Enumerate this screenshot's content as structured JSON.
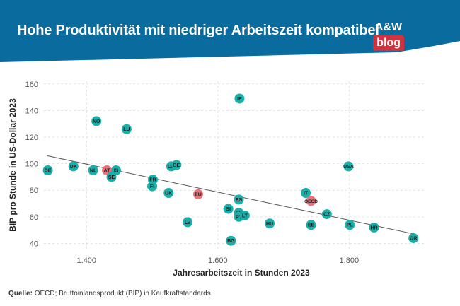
{
  "header": {
    "title": "Hohe Produktivität mit niedriger Arbeitszeit kompatibel",
    "logo_top": "A&W",
    "logo_bottom": "blog",
    "bg_color": "#0a6b9e",
    "logo_accent": "#d0323e"
  },
  "footer": {
    "source_label": "Quelle:",
    "source_text": "OECD; Bruttoinlandsprodukt (BIP) in Kaufkraftstandards"
  },
  "chart_data": {
    "type": "scatter",
    "xlabel": "Jahresarbeitszeit in Stunden 2023",
    "ylabel": "BIP pro Stunde in US-Dollar 2023",
    "xlim": [
      1335,
      1915
    ],
    "ylim": [
      36,
      162
    ],
    "xticks": [
      1400,
      1600,
      1800
    ],
    "xtick_labels": [
      "1.400",
      "1.600",
      "1.800"
    ],
    "yticks": [
      40,
      60,
      80,
      100,
      120,
      140,
      160
    ],
    "grid": true,
    "point_color": "#1aafa8",
    "highlight_color": "#e8737c",
    "trendline": {
      "x": [
        1340,
        1900
      ],
      "y": [
        106,
        47
      ],
      "color": "#555555"
    },
    "points": [
      {
        "label": "DE",
        "x": 1341,
        "y": 95,
        "highlight": false
      },
      {
        "label": "DK",
        "x": 1380,
        "y": 98,
        "highlight": false
      },
      {
        "label": "NL",
        "x": 1410,
        "y": 95,
        "highlight": false
      },
      {
        "label": "AT",
        "x": 1431,
        "y": 95,
        "highlight": true
      },
      {
        "label": "IS",
        "x": 1445,
        "y": 95,
        "highlight": false
      },
      {
        "label": "SE",
        "x": 1438,
        "y": 90,
        "highlight": false
      },
      {
        "label": "NO",
        "x": 1415,
        "y": 132,
        "highlight": false
      },
      {
        "label": "LU",
        "x": 1461,
        "y": 126,
        "highlight": false
      },
      {
        "label": "IE",
        "x": 1633,
        "y": 149,
        "highlight": false
      },
      {
        "label": "FR",
        "x": 1501,
        "y": 88,
        "highlight": false
      },
      {
        "label": "FI",
        "x": 1500,
        "y": 83,
        "highlight": false
      },
      {
        "label": "CH",
        "x": 1529,
        "y": 98,
        "highlight": false
      },
      {
        "label": "BE",
        "x": 1537,
        "y": 99,
        "highlight": false
      },
      {
        "label": "UK",
        "x": 1525,
        "y": 78,
        "highlight": false
      },
      {
        "label": "EU",
        "x": 1570,
        "y": 77,
        "highlight": true
      },
      {
        "label": "LV",
        "x": 1554,
        "y": 56,
        "highlight": false
      },
      {
        "label": "BG",
        "x": 1620,
        "y": 42,
        "highlight": false
      },
      {
        "label": "ES",
        "x": 1632,
        "y": 73,
        "highlight": false
      },
      {
        "label": "SI",
        "x": 1616,
        "y": 66,
        "highlight": false
      },
      {
        "label": "SK",
        "x": 1632,
        "y": 63,
        "highlight": false
      },
      {
        "label": "PT",
        "x": 1632,
        "y": 60,
        "highlight": false
      },
      {
        "label": "LT",
        "x": 1641,
        "y": 61,
        "highlight": false
      },
      {
        "label": "HU",
        "x": 1679,
        "y": 55,
        "highlight": false
      },
      {
        "label": "IT",
        "x": 1734,
        "y": 78,
        "highlight": false
      },
      {
        "label": "OECD",
        "x": 1742,
        "y": 72,
        "highlight": true
      },
      {
        "label": "EE",
        "x": 1742,
        "y": 54,
        "highlight": false
      },
      {
        "label": "CZ",
        "x": 1766,
        "y": 62,
        "highlight": false
      },
      {
        "label": "USA",
        "x": 1799,
        "y": 98,
        "highlight": false
      },
      {
        "label": "PL",
        "x": 1801,
        "y": 54,
        "highlight": false
      },
      {
        "label": "HR",
        "x": 1838,
        "y": 52,
        "highlight": false
      },
      {
        "label": "GR",
        "x": 1898,
        "y": 44,
        "highlight": false
      }
    ]
  }
}
